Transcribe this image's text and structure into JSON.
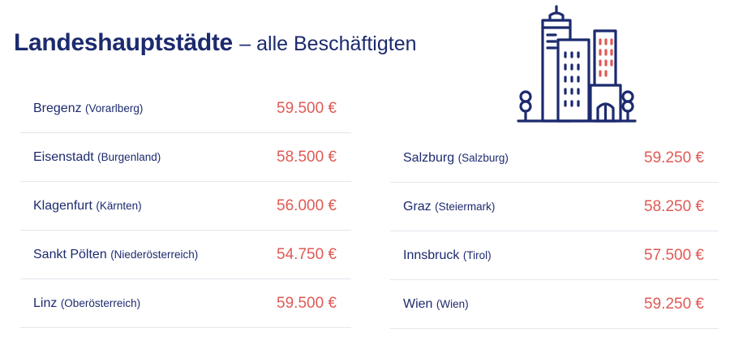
{
  "title": {
    "bold": "Landeshauptstädte",
    "rest": "– alle Beschäftigten"
  },
  "icon": "city-buildings-icon",
  "colors": {
    "navy": "#1c2a6e",
    "salary": "#e05a55",
    "divider": "#e3e6ec"
  },
  "left": [
    {
      "city": "Bregenz",
      "state": "(Vorarlberg)",
      "salary": "59.500 €"
    },
    {
      "city": "Eisenstadt",
      "state": "(Burgenland)",
      "salary": "58.500 €"
    },
    {
      "city": "Klagenfurt",
      "state": "(Kärnten)",
      "salary": "56.000 €"
    },
    {
      "city": "Sankt Pölten",
      "state": "(Niederösterreich)",
      "salary": "54.750 €"
    },
    {
      "city": "Linz",
      "state": "(Oberösterreich)",
      "salary": "59.500 €"
    }
  ],
  "right": [
    {
      "city": "Salzburg",
      "state": "(Salzburg)",
      "salary": "59.250 €"
    },
    {
      "city": "Graz",
      "state": "(Steiermark)",
      "salary": "58.250 €"
    },
    {
      "city": "Innsbruck",
      "state": "(Tirol)",
      "salary": "57.500 €"
    },
    {
      "city": "Wien",
      "state": "(Wien)",
      "salary": "59.250 €"
    }
  ]
}
